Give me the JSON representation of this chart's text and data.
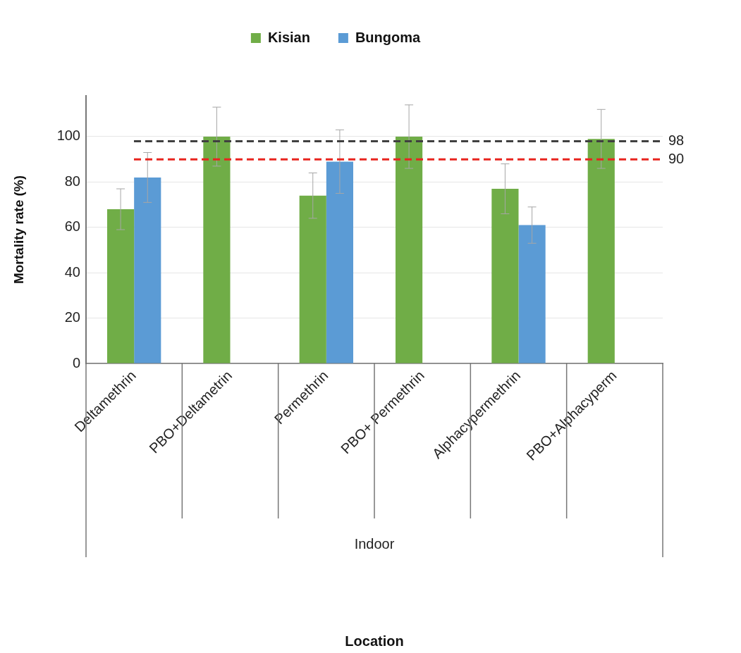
{
  "chart_data": {
    "type": "bar",
    "ylabel": "Mortality rate (%)",
    "categories": [
      "Deltamethrin",
      "PBO+Deltametrin",
      "Permethrin",
      "PBO+ Permethrin",
      "Alphacypermethrin",
      "PBO+Alphacyperm"
    ],
    "series": [
      {
        "name": "Kisian",
        "color": "#70ad47",
        "values": [
          68,
          100,
          74,
          100,
          77,
          99
        ],
        "errors": [
          9,
          13,
          10,
          14,
          11,
          13
        ]
      },
      {
        "name": "Bungoma",
        "color": "#5b9bd5",
        "values": [
          82,
          null,
          89,
          null,
          61,
          null
        ],
        "errors": [
          11,
          null,
          14,
          null,
          8,
          null
        ]
      }
    ],
    "ylim": [
      0,
      118
    ],
    "yticks": [
      0,
      20,
      40,
      60,
      80,
      100
    ],
    "grid": "y",
    "legend": "top",
    "ref_lines": [
      {
        "axis": "y",
        "value": 98,
        "label": "98",
        "color": "#404040",
        "line_style": "dashed"
      },
      {
        "axis": "y",
        "value": 90,
        "label": "90",
        "color": "#e8251f",
        "line_style": "dashed"
      }
    ],
    "annotations": [
      "Indoor",
      "Location"
    ]
  }
}
